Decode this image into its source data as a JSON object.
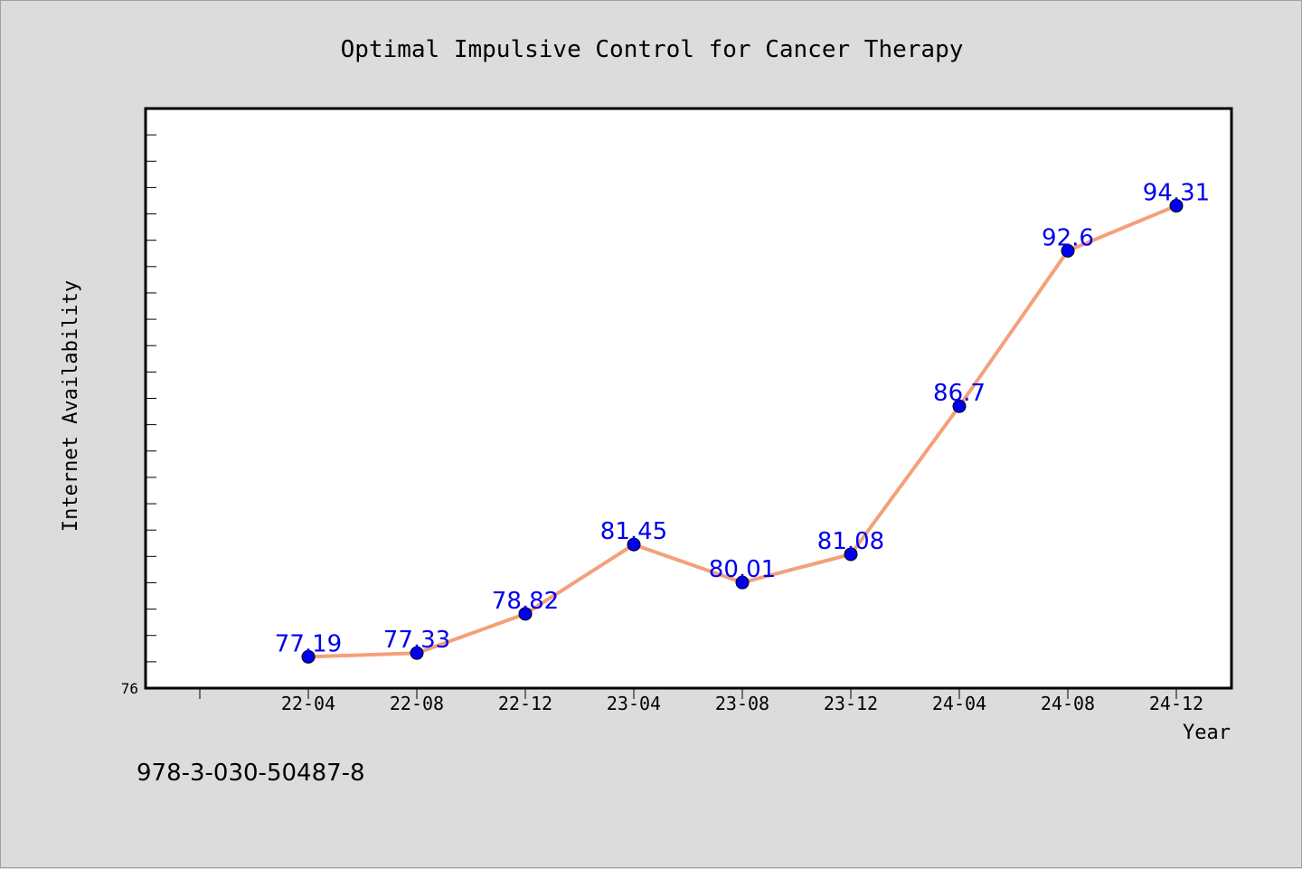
{
  "chart_data": {
    "type": "line",
    "title": "Optimal Impulsive Control for Cancer Therapy",
    "xlabel": "Year",
    "ylabel": "Internet Availability",
    "categories": [
      "22-04",
      "22-08",
      "22-12",
      "23-04",
      "23-08",
      "23-12",
      "24-04",
      "24-08",
      "24-12"
    ],
    "series": [
      {
        "values": [
          77.19,
          77.33,
          78.82,
          81.45,
          80.01,
          81.08,
          86.7,
          92.6,
          94.31
        ],
        "labels": [
          "77.19",
          "77.33",
          "78.82",
          "81.45",
          "80.01",
          "81.08",
          "86.7",
          "92.6",
          "94.31"
        ]
      }
    ],
    "ylim": [
      76,
      98
    ],
    "y_min_label": "76",
    "grid": false,
    "line_color": "#f4a07a",
    "marker_color": "#0000ee",
    "label_color": "#0000ee"
  },
  "footer": {
    "isbn": "978-3-030-50487-8"
  }
}
